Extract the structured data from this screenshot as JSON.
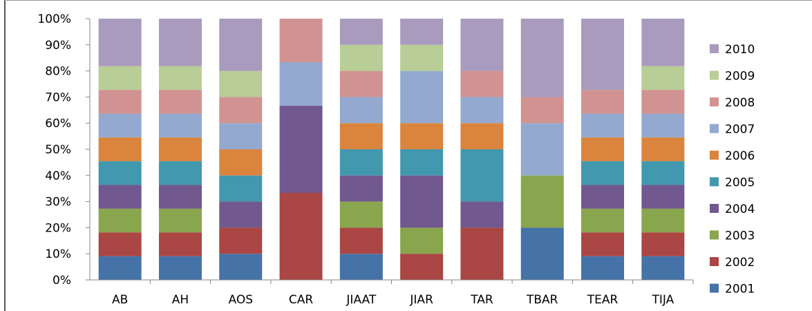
{
  "chart_data": {
    "type": "bar",
    "stacked": "percent",
    "categories": [
      "AB",
      "AH",
      "AOS",
      "CAR",
      "JIAAT",
      "JIAR",
      "TAR",
      "TBAR",
      "TEAR",
      "TIJA"
    ],
    "y_ticks": [
      "0%",
      "10%",
      "20%",
      "30%",
      "40%",
      "50%",
      "60%",
      "70%",
      "80%",
      "90%",
      "100%"
    ],
    "ylim": [
      0,
      100
    ],
    "legend_position": "right",
    "series": [
      {
        "name": "2001",
        "color": "#4572A7",
        "values": [
          9.09,
          9.09,
          10,
          0,
          10,
          0,
          0,
          20,
          9.09,
          9.09
        ]
      },
      {
        "name": "2002",
        "color": "#AA4643",
        "values": [
          9.09,
          9.09,
          10,
          33.33,
          10,
          10,
          20,
          0,
          9.09,
          9.09
        ]
      },
      {
        "name": "2003",
        "color": "#89A54E",
        "values": [
          9.09,
          9.09,
          0,
          0,
          10,
          10,
          0,
          20,
          9.09,
          9.09
        ]
      },
      {
        "name": "2004",
        "color": "#71588F",
        "values": [
          9.09,
          9.09,
          10,
          33.33,
          10,
          20,
          10,
          0,
          9.09,
          9.09
        ]
      },
      {
        "name": "2005",
        "color": "#4198AF",
        "values": [
          9.09,
          9.09,
          10,
          0,
          10,
          10,
          20,
          0,
          9.09,
          9.09
        ]
      },
      {
        "name": "2006",
        "color": "#DB843D",
        "values": [
          9.09,
          9.09,
          10,
          0,
          10,
          10,
          10,
          0,
          9.09,
          9.09
        ]
      },
      {
        "name": "2007",
        "color": "#93A9CF",
        "values": [
          9.09,
          9.09,
          10,
          16.67,
          10,
          20,
          10,
          20,
          9.09,
          9.09
        ]
      },
      {
        "name": "2008",
        "color": "#D19392",
        "values": [
          9.09,
          9.09,
          10,
          16.67,
          10,
          0,
          10,
          10,
          9.09,
          9.09
        ]
      },
      {
        "name": "2009",
        "color": "#B9CD96",
        "values": [
          9.09,
          9.09,
          10,
          0,
          10,
          10,
          0,
          0,
          0,
          9.09
        ]
      },
      {
        "name": "2010",
        "color": "#A99BBD",
        "values": [
          18.18,
          18.18,
          20,
          0,
          10,
          10,
          20,
          30,
          27.27,
          18.18
        ]
      }
    ]
  }
}
